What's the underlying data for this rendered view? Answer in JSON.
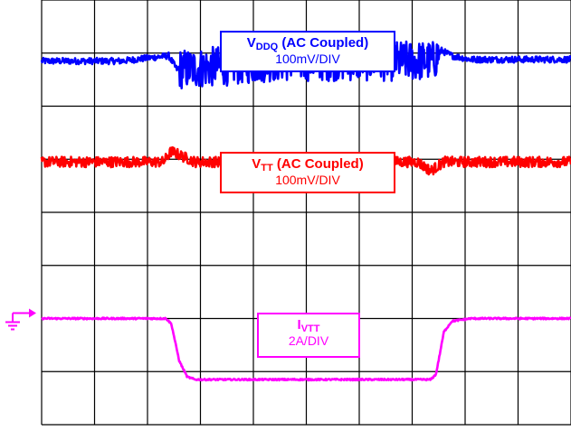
{
  "chart_data": {
    "type": "line",
    "title": "",
    "xlabel": "",
    "ylabel": "",
    "grid": true,
    "grid_divisions": {
      "x": 10,
      "y": 8
    },
    "ground_marker_color": "#ff00ff",
    "series": [
      {
        "key": "vddq",
        "color": "#0000ff",
        "label_main": "V",
        "label_sub": "DDQ",
        "label_rest": " (AC Coupled)",
        "scale": "100mV/DIV",
        "noise_div": 0.06,
        "points": [
          [
            0,
            6.85
          ],
          [
            1.5,
            6.85
          ],
          [
            2.4,
            6.95
          ],
          [
            2.55,
            6.7
          ],
          [
            2.75,
            6.7
          ],
          [
            4.5,
            6.85
          ],
          [
            7.4,
            6.85
          ],
          [
            7.55,
            7.05
          ],
          [
            7.75,
            6.95
          ],
          [
            8.1,
            6.88
          ],
          [
            10,
            6.88
          ]
        ],
        "heavy_noise_x": [
          2.6,
          7.5
        ],
        "heavy_noise_div": 0.38
      },
      {
        "key": "vtt",
        "color": "#ff0000",
        "label_main": "V",
        "label_sub": "TT",
        "label_rest": " (AC Coupled)",
        "scale": "100mV/DIV",
        "noise_div": 0.1,
        "points": [
          [
            0,
            4.95
          ],
          [
            2.3,
            4.95
          ],
          [
            2.45,
            5.15
          ],
          [
            2.9,
            4.95
          ],
          [
            7.1,
            4.95
          ],
          [
            7.35,
            4.78
          ],
          [
            7.6,
            4.95
          ],
          [
            10,
            4.95
          ]
        ],
        "heavy_noise_x": [],
        "heavy_noise_div": 0
      },
      {
        "key": "ivtt",
        "color": "#ff00ff",
        "label_main": "I",
        "label_sub": "VTT",
        "label_rest": "",
        "scale": "2A/DIV",
        "noise_div": 0.015,
        "points": [
          [
            0,
            2.0
          ],
          [
            2.35,
            2.0
          ],
          [
            2.45,
            1.9
          ],
          [
            2.6,
            1.2
          ],
          [
            2.75,
            0.9
          ],
          [
            2.9,
            0.85
          ],
          [
            7.35,
            0.85
          ],
          [
            7.45,
            0.95
          ],
          [
            7.6,
            1.75
          ],
          [
            7.75,
            1.95
          ],
          [
            8.1,
            2.0
          ],
          [
            10,
            2.0
          ]
        ],
        "heavy_noise_x": [],
        "heavy_noise_div": 0
      }
    ]
  }
}
